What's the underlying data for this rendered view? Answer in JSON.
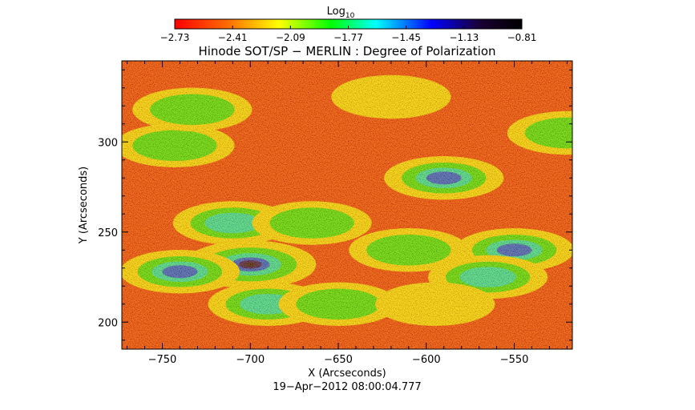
{
  "chart_data": {
    "type": "heatmap",
    "title": "Hinode SOT/SP − MERLIN : Degree of Polarization",
    "xlabel": "X (Arcseconds)",
    "ylabel": "Y (Arcseconds)",
    "timestamp": "19−Apr−2012 08:00:04.777",
    "xlim": [
      -773,
      -517
    ],
    "ylim": [
      185,
      345
    ],
    "x_ticks": [
      -750,
      -700,
      -650,
      -600,
      -550
    ],
    "x_tick_labels": [
      "−750",
      "−700",
      "−650",
      "−600",
      "−550"
    ],
    "y_ticks": [
      200,
      250,
      300
    ],
    "y_tick_labels": [
      "200",
      "250",
      "300"
    ],
    "colorbar": {
      "label_main": "Log",
      "label_sub": "10",
      "range": [
        -2.73,
        -0.81
      ],
      "tick_values": [
        -2.73,
        -2.41,
        -2.09,
        -1.77,
        -1.45,
        -1.13,
        -0.81
      ],
      "tick_labels": [
        "−2.73",
        "−2.41",
        "−2.09",
        "−1.77",
        "−1.45",
        "−1.13",
        "−0.81"
      ],
      "colors": [
        "#ff0000",
        "#ff6a00",
        "#ffff00",
        "#00ff00",
        "#00ffff",
        "#0000ff",
        "#1a0033",
        "#000000"
      ]
    },
    "grid": false,
    "features": [
      {
        "x": -700,
        "y": 232,
        "value": -0.81
      },
      {
        "x": -740,
        "y": 228,
        "value": -1.3
      },
      {
        "x": -710,
        "y": 255,
        "value": -1.6
      },
      {
        "x": -690,
        "y": 210,
        "value": -1.7
      },
      {
        "x": -743,
        "y": 298,
        "value": -1.9
      },
      {
        "x": -733,
        "y": 318,
        "value": -2.0
      },
      {
        "x": -665,
        "y": 255,
        "value": -1.8
      },
      {
        "x": -650,
        "y": 210,
        "value": -2.0
      },
      {
        "x": -590,
        "y": 280,
        "value": -1.5
      },
      {
        "x": -610,
        "y": 240,
        "value": -2.0
      },
      {
        "x": -550,
        "y": 240,
        "value": -1.3
      },
      {
        "x": -565,
        "y": 225,
        "value": -1.7
      },
      {
        "x": -520,
        "y": 305,
        "value": -1.9
      },
      {
        "x": -620,
        "y": 325,
        "value": -2.1
      },
      {
        "x": -595,
        "y": 210,
        "value": -2.2
      }
    ]
  }
}
